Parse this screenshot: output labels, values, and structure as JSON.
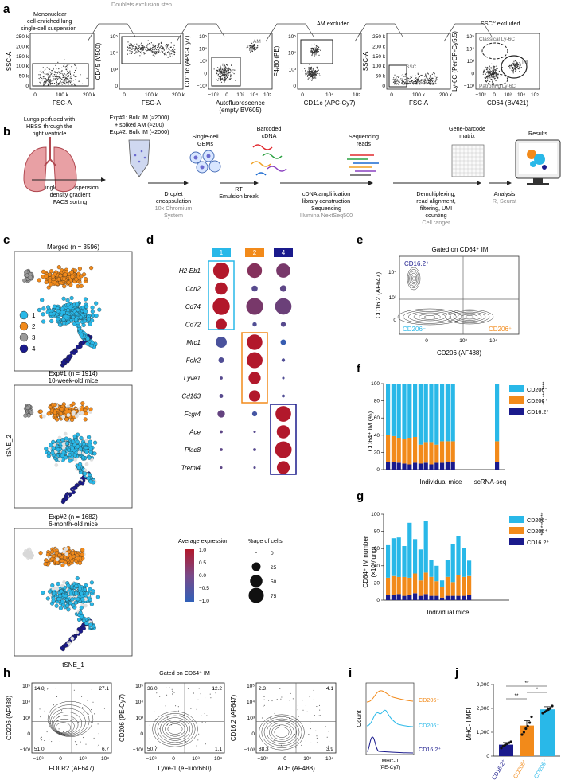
{
  "colors": {
    "c1": "#29b8e8",
    "c2": "#f28a1a",
    "c3": "#9a9a9a",
    "c4": "#1a1a8c",
    "gray_cluster": "#a8a8a8"
  },
  "panel_a": {
    "label": "a",
    "top_labels": {
      "mononuclear": "Mononuclear",
      "cell_enriched": "cell-enriched lung",
      "single_cell": "single-cell suspension",
      "doublets": "Doublets exclusion step",
      "am_excluded": "AM excluded",
      "ssc_excluded": "SSC",
      "ssc_excluded_sup": "lo",
      "ssc_excluded_tail": " excluded"
    },
    "plots": [
      {
        "xlabel": "FSC-A",
        "ylabel": "SSC-A",
        "xticks": [
          "0",
          "100 k",
          "200 k"
        ],
        "yticks": [
          "0",
          "50 k",
          "100 k",
          "150 k",
          "200 k",
          "250 k"
        ]
      },
      {
        "xlabel": "FSC-A",
        "ylabel": "CD45 (V500)",
        "xticks": [
          "0",
          "100 k",
          "200 k"
        ],
        "yticks": [
          "0",
          "10³",
          "10⁴",
          "10⁵"
        ]
      },
      {
        "xlabel": "Autofluorescence",
        "xlabel2": "(empty BV605)",
        "ylabel": "CD11c (APC-Cy7)",
        "xticks": [
          "−10³",
          "0",
          "10³",
          "10⁴",
          "10⁵"
        ],
        "yticks": [
          "−10³",
          "0",
          "10³",
          "10⁴",
          "10⁵"
        ],
        "gate": "AM"
      },
      {
        "xlabel": "CD11c (APC-Cy7)",
        "ylabel": "F4/80 (PE)",
        "xticks": [
          "0",
          "10⁴",
          "10⁵"
        ],
        "yticks": [
          "0",
          "10³",
          "10⁴",
          "10⁵"
        ]
      },
      {
        "xlabel": "FSC-A",
        "ylabel": "SSC-A",
        "xticks": [
          "0",
          "100 k",
          "200 k"
        ],
        "yticks": [
          "0",
          "50 k",
          "100 k",
          "150 k",
          "200 k",
          "250 k"
        ],
        "gate": "SSC",
        "gate_sup": "lo"
      },
      {
        "xlabel": "CD64 (BV421)",
        "ylabel": "Ly-6C (PerCP-Cy5.5)",
        "xticks": [
          "−10³",
          "0",
          "10³",
          "10⁴",
          "10⁵"
        ],
        "yticks": [
          "−10³",
          "0",
          "10³",
          "10⁴",
          "10⁵"
        ],
        "gate_top": "Classical Ly-6C",
        "gate_top_sup": "hi",
        "gate_top_tail": " Mo",
        "gate_mid": "IM",
        "gate_bot": "Patrolling Ly-6C",
        "gate_bot_sup": "lo",
        "gate_bot_tail": " Mo"
      }
    ]
  },
  "panel_b": {
    "label": "b",
    "lungs_text": [
      "Lungs perfused with",
      "HBSS through the",
      "right ventricle"
    ],
    "exp_text": [
      "Exp#1: Bulk IM (≈2000)",
      "+ spiked AM (≈200)",
      "Exp#2: Bulk IM (≈2000)"
    ],
    "gems_text": [
      "Single-cell",
      "GEMs"
    ],
    "barcoded_text": [
      "Barcoded",
      "cDNA"
    ],
    "seqreads_text": [
      "Sequencing",
      "reads"
    ],
    "matrix_text": [
      "Gene-barcode",
      "matrix"
    ],
    "results_text": "Results",
    "step1": [
      "Single-cell suspension",
      "density gradient",
      "FACS sorting"
    ],
    "step2": [
      "Droplet",
      "encapsulation"
    ],
    "step2_gray": [
      "10x Chromium",
      "System"
    ],
    "step3": [
      "RT",
      "Emulsion break"
    ],
    "step4": [
      "cDNA amplification",
      "library construction",
      "Sequencing"
    ],
    "step4_gray": "Illumina NextSeq500",
    "step5": [
      "Demultiplexing,",
      "read alignment,",
      "filtering, UMI",
      "counting"
    ],
    "step5_gray": "Cell ranger",
    "step6": "Analysis",
    "step6_gray": "R, Seurat"
  },
  "panel_c": {
    "label": "c",
    "titles": [
      "Merged (n = 3596)",
      "Exp#1 (n = 1914)",
      "10-week-old mice",
      "Exp#2 (n = 1682)",
      "6-month-old mice"
    ],
    "legend": [
      "1",
      "2",
      "3",
      "4"
    ],
    "xlabel": "tSNE_1",
    "ylabel": "tSNE_2"
  },
  "panel_d": {
    "label": "d",
    "clusters": [
      "1",
      "2",
      "4"
    ],
    "genes": [
      "H2-Eb1",
      "Ccrl2",
      "Cd74",
      "Cd72",
      "Mrc1",
      "Folr2",
      "Lyve1",
      "Cd163",
      "Fcgr4",
      "Ace",
      "Plac8",
      "Treml4"
    ],
    "pct": [
      [
        85,
        70,
        65
      ],
      [
        50,
        12,
        14
      ],
      [
        95,
        92,
        88
      ],
      [
        40,
        6,
        8
      ],
      [
        40,
        78,
        10
      ],
      [
        10,
        82,
        4
      ],
      [
        3,
        48,
        2
      ],
      [
        5,
        42,
        3
      ],
      [
        18,
        8,
        80
      ],
      [
        3,
        2,
        56
      ],
      [
        3,
        3,
        92
      ],
      [
        2,
        2,
        54
      ]
    ],
    "avgexp": [
      [
        1.0,
        0.3,
        0.1
      ],
      [
        1.0,
        -0.4,
        -0.3
      ],
      [
        1.0,
        0.1,
        -0.1
      ],
      [
        1.0,
        -0.5,
        -0.4
      ],
      [
        -0.6,
        1.0,
        -0.9
      ],
      [
        -0.5,
        1.0,
        -0.5
      ],
      [
        -0.4,
        1.0,
        -0.5
      ],
      [
        -0.4,
        1.0,
        -0.5
      ],
      [
        -0.2,
        -0.7,
        1.0
      ],
      [
        -0.3,
        -0.4,
        1.0
      ],
      [
        -0.3,
        -0.4,
        1.0
      ],
      [
        -0.3,
        -0.4,
        1.0
      ]
    ],
    "avg_title": "Average expression",
    "avg_ticks": [
      "1.0",
      "0.5",
      "0.0",
      "−0.5",
      "−1.0"
    ],
    "pct_title": "%age of cells",
    "pct_ticks": [
      "0",
      "25",
      "50",
      "75"
    ]
  },
  "panel_e": {
    "label": "e",
    "title": "Gated on CD64⁺ IM",
    "ylabel": "CD16.2 (AF647)",
    "xlabel": "CD206 (AF488)",
    "quad_tl": "CD16.2⁺",
    "quad_bl": "CD206⁻",
    "quad_br": "CD206⁺",
    "xticks": [
      "0",
      "10³",
      "10⁴"
    ],
    "yticks": [
      "0",
      "10³",
      "10⁴"
    ]
  },
  "panel_f": {
    "label": "f",
    "ylabel": "CD64⁺ IM (%)",
    "xlabel": "Individual mice",
    "xlabel2": "scRNA-seq",
    "yticks": [
      "0",
      "20",
      "40",
      "60",
      "80",
      "100"
    ],
    "legend": [
      "CD206⁻",
      "CD206⁺",
      "CD16.2⁺"
    ],
    "sig": "***  ***  ****"
  },
  "panel_g": {
    "label": "g",
    "ylabel": "CD64⁺ IM number",
    "ylabel2": "(×10³/lung)",
    "xlabel": "Individual mice",
    "yticks": [
      "0",
      "20",
      "40",
      "60",
      "80",
      "100"
    ],
    "legend": [
      "CD206⁻",
      "CD206⁺",
      "CD16.2⁺"
    ]
  },
  "panel_h": {
    "label": "h",
    "title": "Gated on CD64⁺ IM",
    "plots": [
      {
        "xlabel": "FOLR2 (AF647)",
        "ylabel": "CD206 (AF488)",
        "q": [
          "14.8",
          "27.1",
          "51.0",
          "6.7"
        ]
      },
      {
        "xlabel": "Lyve-1 (eFluor660)",
        "ylabel": "CD206 (PE-Cy7)",
        "q": [
          "36.0",
          "12.2",
          "50.7",
          "1.1"
        ]
      },
      {
        "xlabel": "ACE (AF488)",
        "ylabel": "CD16.2 (AF647)",
        "q": [
          "2.3",
          "4.1",
          "88.3",
          "3.9"
        ]
      }
    ],
    "xticks": [
      "−10³",
      "0",
      "10³",
      "10⁴"
    ],
    "yticks": [
      "−10³",
      "0",
      "10³",
      "10⁴",
      "10⁵"
    ]
  },
  "panel_i": {
    "label": "i",
    "labels": [
      "CD206⁺",
      "CD206⁻",
      "CD16.2⁺"
    ],
    "ylabel": "Count",
    "xlabel": "MHC-II",
    "xlabel2": "(PE-Cy7)"
  },
  "panel_j": {
    "label": "j",
    "ylabel": "MHC-II MFI",
    "categories": [
      "CD16.2⁺",
      "CD206⁺",
      "CD206⁻"
    ],
    "yticks": [
      "0",
      "1,000",
      "2,000",
      "3,000"
    ],
    "sig": [
      "**",
      "**",
      "*"
    ]
  },
  "chart_data": [
    {
      "type": "bar",
      "title": "f",
      "ylabel": "CD64+ IM (%)",
      "xlabel": "Individual mice",
      "ylim": [
        0,
        100
      ],
      "categories": [
        "m1",
        "m2",
        "m3",
        "m4",
        "m5",
        "m6",
        "m7",
        "m8",
        "m9",
        "m10",
        "m11",
        "m12",
        "m13",
        "scRNA-seq"
      ],
      "series": [
        {
          "name": "CD16.2+",
          "values": [
            9,
            9,
            8,
            7,
            6,
            8,
            7,
            8,
            6,
            8,
            8,
            9,
            9,
            9
          ]
        },
        {
          "name": "CD206+",
          "values": [
            31,
            30,
            29,
            29,
            31,
            30,
            22,
            24,
            26,
            21,
            25,
            24,
            24,
            24
          ]
        },
        {
          "name": "CD206-",
          "values": [
            60,
            61,
            63,
            64,
            63,
            62,
            71,
            68,
            68,
            71,
            67,
            67,
            67,
            67
          ]
        }
      ]
    },
    {
      "type": "bar",
      "title": "g",
      "ylabel": "CD64+ IM number (x10^3/lung)",
      "xlabel": "Individual mice",
      "ylim": [
        0,
        100
      ],
      "categories": [
        "m1",
        "m2",
        "m3",
        "m4",
        "m5",
        "m6",
        "m7",
        "m8",
        "m9",
        "m10",
        "m11",
        "m12",
        "m13",
        "m14",
        "m15",
        "m16"
      ],
      "series": [
        {
          "name": "CD16.2+",
          "values": [
            6,
            6,
            7,
            5,
            6,
            8,
            5,
            7,
            5,
            5,
            3,
            5,
            5,
            5,
            5,
            6
          ]
        },
        {
          "name": "CD206+",
          "values": [
            20,
            22,
            20,
            22,
            20,
            23,
            18,
            25,
            22,
            17,
            12,
            22,
            16,
            24,
            22,
            22
          ]
        },
        {
          "name": "CD206-",
          "values": [
            38,
            44,
            46,
            36,
            64,
            40,
            36,
            60,
            20,
            18,
            8,
            20,
            44,
            46,
            34,
            18
          ]
        }
      ]
    },
    {
      "type": "bar",
      "title": "j",
      "ylabel": "MHC-II MFI",
      "categories": [
        "CD16.2+",
        "CD206+",
        "CD206-"
      ],
      "values": [
        480,
        1280,
        1960
      ],
      "errors": [
        90,
        200,
        110
      ],
      "points": [
        [
          340,
          420,
          470,
          520,
          560,
          600
        ],
        [
          900,
          1000,
          1150,
          1250,
          1400,
          1650
        ],
        [
          1800,
          1850,
          1900,
          1950,
          2000,
          2100
        ]
      ],
      "ylim": [
        0,
        3000
      ]
    }
  ]
}
